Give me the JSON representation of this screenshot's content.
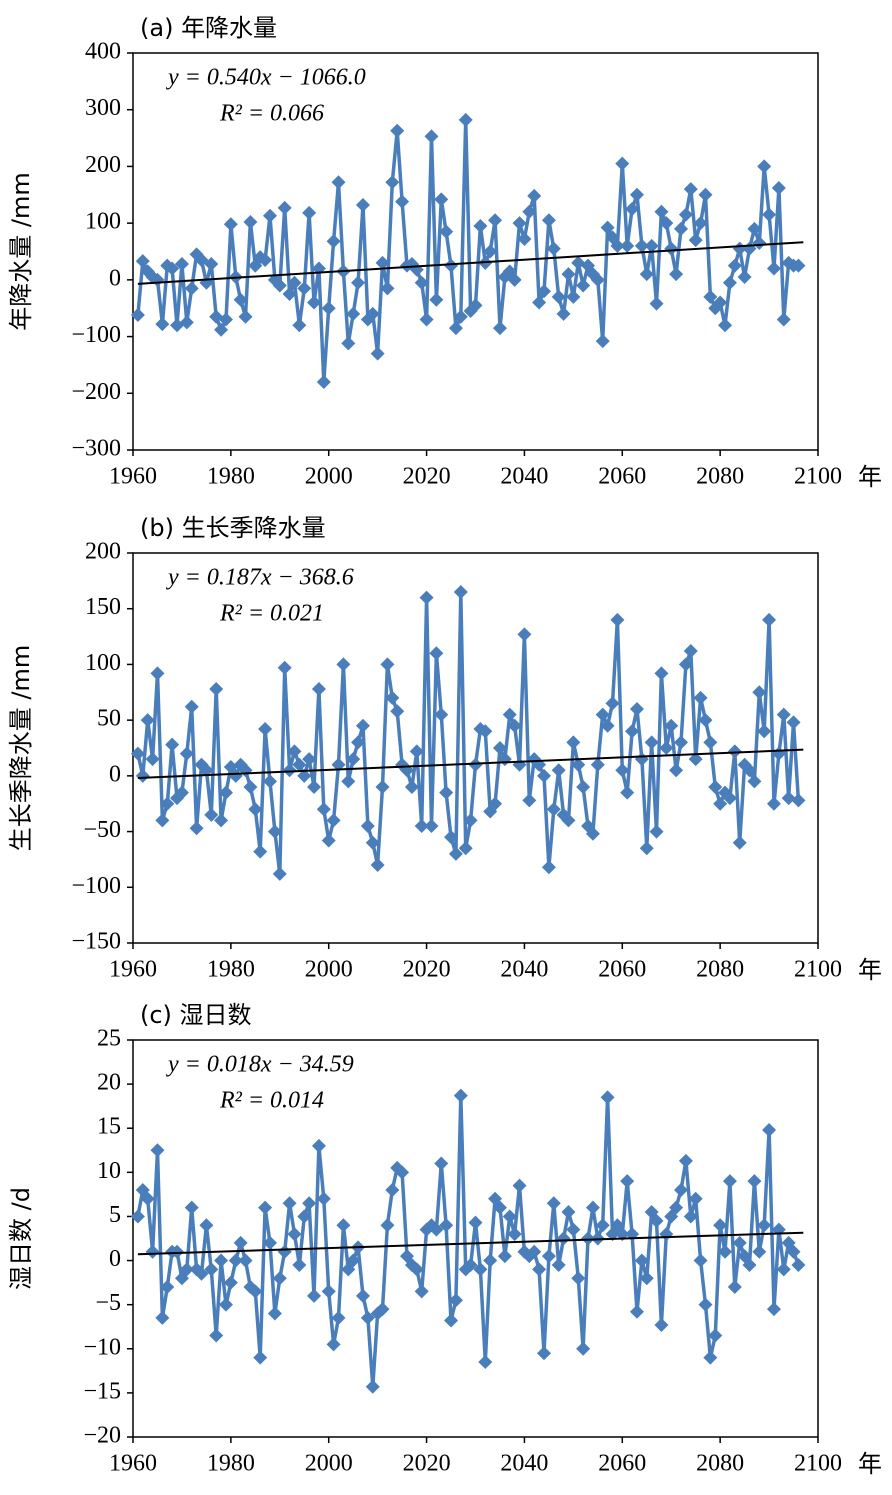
{
  "chart_data": [
    {
      "type": "line",
      "title": "(a) 年降水量",
      "ylabel": "年降水量 /mm",
      "xlabel": "年",
      "color": "#4a7ebb",
      "trend": {
        "slope": 0.54,
        "intercept": -1066.0,
        "color": "#000000",
        "label": "y = 0.540x − 1066.0",
        "r2_label": "R² = 0.066"
      },
      "xlim": [
        1960,
        2100
      ],
      "xticks": [
        1960,
        1980,
        2000,
        2020,
        2040,
        2060,
        2080,
        2100
      ],
      "ylim": [
        -300,
        400
      ],
      "yticks": [
        {
          "value": -300,
          "label": "−300"
        },
        {
          "value": -200,
          "label": "−200"
        },
        {
          "value": -100,
          "label": "−100"
        },
        0,
        100,
        200,
        300,
        400
      ],
      "x": [
        1961,
        1962,
        1963,
        1964,
        1965,
        1966,
        1967,
        1968,
        1969,
        1970,
        1971,
        1972,
        1973,
        1974,
        1975,
        1976,
        1977,
        1978,
        1979,
        1980,
        1981,
        1982,
        1983,
        1984,
        1985,
        1986,
        1987,
        1988,
        1989,
        1990,
        1991,
        1992,
        1993,
        1994,
        1995,
        1996,
        1997,
        1998,
        1999,
        2000,
        2001,
        2002,
        2003,
        2004,
        2005,
        2006,
        2007,
        2008,
        2009,
        2010,
        2011,
        2012,
        2013,
        2014,
        2015,
        2016,
        2017,
        2018,
        2019,
        2020,
        2021,
        2022,
        2023,
        2024,
        2025,
        2026,
        2027,
        2028,
        2029,
        2030,
        2031,
        2032,
        2033,
        2034,
        2035,
        2036,
        2037,
        2038,
        2039,
        2040,
        2041,
        2042,
        2043,
        2044,
        2045,
        2046,
        2047,
        2048,
        2049,
        2050,
        2051,
        2052,
        2053,
        2054,
        2055,
        2056,
        2057,
        2058,
        2059,
        2060,
        2061,
        2062,
        2063,
        2064,
        2065,
        2066,
        2067,
        2068,
        2069,
        2070,
        2071,
        2072,
        2073,
        2074,
        2075,
        2076,
        2077,
        2078,
        2079,
        2080,
        2081,
        2082,
        2083,
        2084,
        2085,
        2086,
        2087,
        2088,
        2089,
        2090,
        2091,
        2092,
        2093,
        2094,
        2095,
        2096
      ],
      "values": [
        -62,
        33,
        15,
        5,
        0,
        -78,
        25,
        20,
        -80,
        28,
        -75,
        -15,
        45,
        35,
        -5,
        28,
        -65,
        -88,
        -70,
        98,
        5,
        -35,
        -65,
        102,
        25,
        40,
        35,
        113,
        0,
        -10,
        127,
        -25,
        -5,
        -80,
        -15,
        118,
        -40,
        20,
        -180,
        -50,
        68,
        172,
        15,
        -112,
        -60,
        -5,
        132,
        -70,
        -60,
        -130,
        30,
        -15,
        172,
        263,
        138,
        25,
        28,
        18,
        -5,
        -70,
        253,
        -35,
        142,
        85,
        25,
        -85,
        -65,
        282,
        -55,
        -45,
        95,
        30,
        50,
        105,
        -85,
        5,
        15,
        0,
        100,
        72,
        120,
        148,
        -40,
        -20,
        105,
        55,
        -30,
        -60,
        10,
        -30,
        30,
        -10,
        25,
        10,
        0,
        -108,
        92,
        75,
        60,
        205,
        60,
        125,
        150,
        60,
        10,
        60,
        -42,
        120,
        100,
        55,
        10,
        90,
        115,
        160,
        70,
        100,
        150,
        -30,
        -50,
        -40,
        -80,
        -5,
        25,
        55,
        5,
        55,
        90,
        65,
        200,
        115,
        20,
        162,
        -70,
        30,
        25,
        25
      ]
    },
    {
      "type": "line",
      "title": "(b) 生长季降水量",
      "ylabel": "生长季降水量 /mm",
      "xlabel": "年",
      "color": "#4a7ebb",
      "trend": {
        "slope": 0.187,
        "intercept": -368.6,
        "color": "#000000",
        "label": "y = 0.187x − 368.6",
        "r2_label": "R² = 0.021"
      },
      "xlim": [
        1960,
        2100
      ],
      "xticks": [
        1960,
        1980,
        2000,
        2020,
        2040,
        2060,
        2080,
        2100
      ],
      "ylim": [
        -150,
        200
      ],
      "yticks": [
        {
          "value": -150,
          "label": "−150"
        },
        {
          "value": -100,
          "label": "−100"
        },
        {
          "value": -50,
          "label": "−50"
        },
        0,
        50,
        100,
        150,
        200
      ],
      "x": [
        1961,
        1962,
        1963,
        1964,
        1965,
        1966,
        1967,
        1968,
        1969,
        1970,
        1971,
        1972,
        1973,
        1974,
        1975,
        1976,
        1977,
        1978,
        1979,
        1980,
        1981,
        1982,
        1983,
        1984,
        1985,
        1986,
        1987,
        1988,
        1989,
        1990,
        1991,
        1992,
        1993,
        1994,
        1995,
        1996,
        1997,
        1998,
        1999,
        2000,
        2001,
        2002,
        2003,
        2004,
        2005,
        2006,
        2007,
        2008,
        2009,
        2010,
        2011,
        2012,
        2013,
        2014,
        2015,
        2016,
        2017,
        2018,
        2019,
        2020,
        2021,
        2022,
        2023,
        2024,
        2025,
        2026,
        2027,
        2028,
        2029,
        2030,
        2031,
        2032,
        2033,
        2034,
        2035,
        2036,
        2037,
        2038,
        2039,
        2040,
        2041,
        2042,
        2043,
        2044,
        2045,
        2046,
        2047,
        2048,
        2049,
        2050,
        2051,
        2052,
        2053,
        2054,
        2055,
        2056,
        2057,
        2058,
        2059,
        2060,
        2061,
        2062,
        2063,
        2064,
        2065,
        2066,
        2067,
        2068,
        2069,
        2070,
        2071,
        2072,
        2073,
        2074,
        2075,
        2076,
        2077,
        2078,
        2079,
        2080,
        2081,
        2082,
        2083,
        2084,
        2085,
        2086,
        2087,
        2088,
        2089,
        2090,
        2091,
        2092,
        2093,
        2094,
        2095,
        2096
      ],
      "values": [
        20,
        0,
        50,
        15,
        92,
        -40,
        -25,
        28,
        -20,
        -15,
        20,
        62,
        -47,
        10,
        5,
        -35,
        78,
        -40,
        -15,
        8,
        0,
        10,
        5,
        -10,
        -30,
        -68,
        42,
        -5,
        -50,
        -88,
        97,
        5,
        22,
        10,
        0,
        15,
        -10,
        78,
        -30,
        -58,
        -40,
        10,
        100,
        -5,
        15,
        30,
        45,
        -45,
        -60,
        -80,
        -10,
        100,
        70,
        58,
        10,
        5,
        -10,
        22,
        -45,
        160,
        -45,
        110,
        55,
        -15,
        -55,
        -70,
        165,
        -65,
        -40,
        10,
        42,
        40,
        -32,
        -25,
        25,
        15,
        55,
        45,
        10,
        127,
        -22,
        15,
        10,
        0,
        -82,
        -30,
        5,
        -35,
        -40,
        30,
        10,
        -10,
        -45,
        -52,
        10,
        55,
        45,
        65,
        140,
        5,
        -15,
        40,
        60,
        15,
        -65,
        30,
        -50,
        92,
        25,
        45,
        5,
        30,
        100,
        112,
        15,
        70,
        50,
        30,
        -10,
        -25,
        -15,
        -20,
        22,
        -60,
        10,
        5,
        -5,
        75,
        40,
        140,
        -25,
        20,
        55,
        -20,
        48,
        -22
      ]
    },
    {
      "type": "line",
      "title": "(c) 湿日数",
      "ylabel": "湿日数 /d",
      "xlabel": "年",
      "color": "#4a7ebb",
      "trend": {
        "slope": 0.018,
        "intercept": -34.59,
        "color": "#000000",
        "label": "y = 0.018x − 34.59",
        "r2_label": "R² = 0.014"
      },
      "xlim": [
        1960,
        2100
      ],
      "xticks": [
        1960,
        1980,
        2000,
        2020,
        2040,
        2060,
        2080,
        2100
      ],
      "ylim": [
        -20,
        25
      ],
      "yticks": [
        {
          "value": -20,
          "label": "−20"
        },
        {
          "value": -15,
          "label": "−15"
        },
        {
          "value": -10,
          "label": "−10"
        },
        {
          "value": -5,
          "label": "−5"
        },
        0,
        5,
        10,
        15,
        20,
        25
      ],
      "x": [
        1961,
        1962,
        1963,
        1964,
        1965,
        1966,
        1967,
        1968,
        1969,
        1970,
        1971,
        1972,
        1973,
        1974,
        1975,
        1976,
        1977,
        1978,
        1979,
        1980,
        1981,
        1982,
        1983,
        1984,
        1985,
        1986,
        1987,
        1988,
        1989,
        1990,
        1991,
        1992,
        1993,
        1994,
        1995,
        1996,
        1997,
        1998,
        1999,
        2000,
        2001,
        2002,
        2003,
        2004,
        2005,
        2006,
        2007,
        2008,
        2009,
        2010,
        2011,
        2012,
        2013,
        2014,
        2015,
        2016,
        2017,
        2018,
        2019,
        2020,
        2021,
        2022,
        2023,
        2024,
        2025,
        2026,
        2027,
        2028,
        2029,
        2030,
        2031,
        2032,
        2033,
        2034,
        2035,
        2036,
        2037,
        2038,
        2039,
        2040,
        2041,
        2042,
        2043,
        2044,
        2045,
        2046,
        2047,
        2048,
        2049,
        2050,
        2051,
        2052,
        2053,
        2054,
        2055,
        2056,
        2057,
        2058,
        2059,
        2060,
        2061,
        2062,
        2063,
        2064,
        2065,
        2066,
        2067,
        2068,
        2069,
        2070,
        2071,
        2072,
        2073,
        2074,
        2075,
        2076,
        2077,
        2078,
        2079,
        2080,
        2081,
        2082,
        2083,
        2084,
        2085,
        2086,
        2087,
        2088,
        2089,
        2090,
        2091,
        2092,
        2093,
        2094,
        2095,
        2096
      ],
      "values": [
        5,
        8,
        7,
        1,
        12.5,
        -6.5,
        -3,
        1,
        1,
        -2,
        -1,
        6,
        -1,
        -1.5,
        4,
        -1,
        -8.5,
        0,
        -5,
        -2.5,
        0,
        2,
        0,
        -3,
        -3.5,
        -11,
        6,
        2,
        -6,
        -2,
        1,
        6.5,
        3,
        -0.5,
        5,
        6.5,
        -4,
        13,
        7,
        -3.5,
        -9.5,
        -6.5,
        4,
        -1,
        0,
        1.5,
        -4,
        -6.5,
        -14.3,
        -6,
        -5.5,
        4,
        8,
        10.5,
        10,
        0.5,
        -0.5,
        -1,
        -3.5,
        3.5,
        4,
        3.5,
        11,
        4,
        -6.8,
        -4.5,
        18.7,
        -1,
        -0.5,
        4.3,
        -1,
        -11.5,
        0,
        7,
        6,
        0.5,
        5,
        3,
        8.5,
        1,
        0.5,
        1,
        -1,
        -10.5,
        0.5,
        6.5,
        -0.5,
        2.5,
        5.5,
        3.5,
        -2,
        -10,
        2.5,
        6,
        2.5,
        4,
        18.5,
        3,
        4,
        3,
        9,
        3,
        -5.8,
        0,
        -2,
        5.5,
        4.5,
        -7.3,
        3,
        5,
        6,
        8,
        11.3,
        5,
        7,
        0,
        -5,
        -11,
        -8.5,
        4,
        1,
        9,
        -3,
        2,
        0.5,
        -0.5,
        9,
        1,
        4,
        14.8,
        -5.5,
        3.5,
        -1,
        2,
        1,
        -0.5
      ]
    }
  ]
}
